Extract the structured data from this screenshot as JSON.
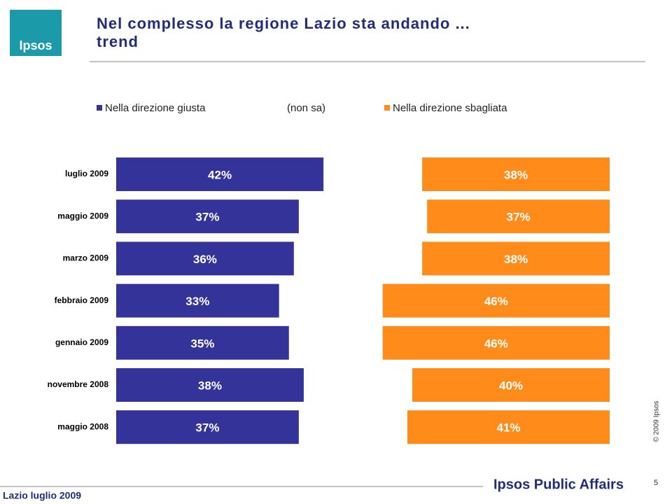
{
  "page": {
    "logo": "Ipsos",
    "footer_left": "Lazio luglio 2009",
    "footer_brand": "Ipsos Public Affairs",
    "page_number": "5",
    "copyright": "© 2009 Ipsos"
  },
  "chart_data": {
    "type": "bar",
    "orientation": "horizontal",
    "stacked": true,
    "title": "Nel complesso la regione Lazio sta andando ...",
    "subtitle": "trend",
    "categories": [
      "luglio 2009",
      "maggio 2009",
      "marzo 2009",
      "febbraio 2009",
      "gennaio 2009",
      "novembre 2008",
      "maggio 2008"
    ],
    "xlim": [
      0,
      100
    ],
    "series": [
      {
        "name": "Nella direzione giusta",
        "color": "#333399",
        "values": [
          42,
          37,
          36,
          33,
          35,
          38,
          37
        ],
        "value_labels": [
          "42%",
          "37%",
          "36%",
          "33%",
          "35%",
          "38%",
          "37%"
        ]
      },
      {
        "name": "(non sa)",
        "color": "none",
        "values": [
          20,
          26,
          26,
          21,
          19,
          22,
          22
        ]
      },
      {
        "name": "Nella direzione sbagliata",
        "color": "#ff8c1a",
        "values": [
          38,
          37,
          38,
          46,
          46,
          40,
          41
        ],
        "value_labels": [
          "38%",
          "37%",
          "38%",
          "46%",
          "46%",
          "40%",
          "41%"
        ]
      }
    ]
  }
}
